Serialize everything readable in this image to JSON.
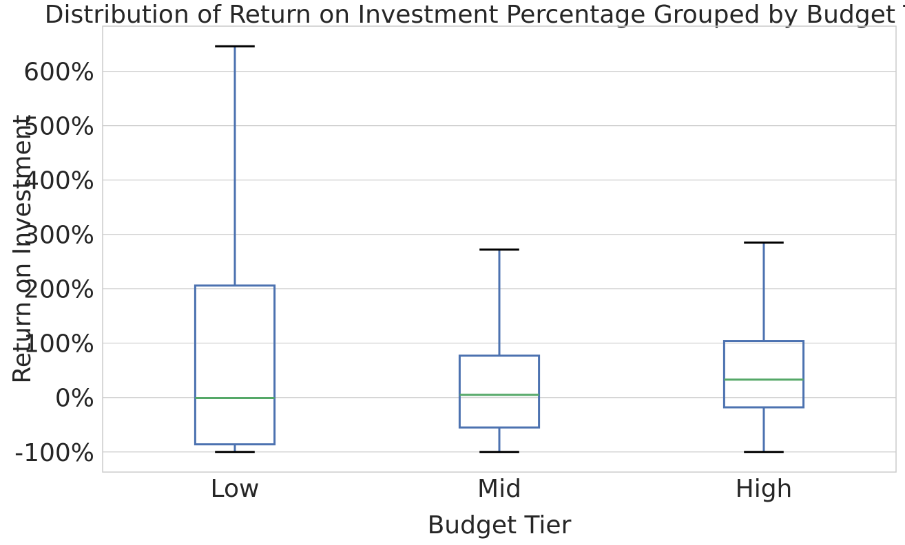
{
  "chart_data": {
    "type": "box",
    "title": "Distribution of Return on Investment Percentage Grouped by Budget Tier",
    "xlabel": "Budget Tier",
    "ylabel": "Return on Investment",
    "categories": [
      "Low",
      "Mid",
      "High"
    ],
    "ylim": [
      -137,
      683
    ],
    "y_ticks": [
      -100,
      0,
      100,
      200,
      300,
      400,
      500,
      600
    ],
    "y_tick_labels": [
      "-100%",
      "0%",
      "100%",
      "200%",
      "300%",
      "400%",
      "500%",
      "600%"
    ],
    "grid": "horizontal",
    "boxes": [
      {
        "category": "Low",
        "whisker_low": -100,
        "q1": -86,
        "median": -1,
        "q3": 206,
        "whisker_high": 646
      },
      {
        "category": "Mid",
        "whisker_low": -100,
        "q1": -55,
        "median": 5,
        "q3": 77,
        "whisker_high": 272
      },
      {
        "category": "High",
        "whisker_low": -100,
        "q1": -18,
        "median": 33,
        "q3": 104,
        "whisker_high": 285
      }
    ],
    "colors": {
      "box": "#4c72b0",
      "median": "#55a868",
      "cap": "#000000",
      "grid": "#cccccc",
      "axis": "#cccccc",
      "text": "#262626"
    }
  }
}
